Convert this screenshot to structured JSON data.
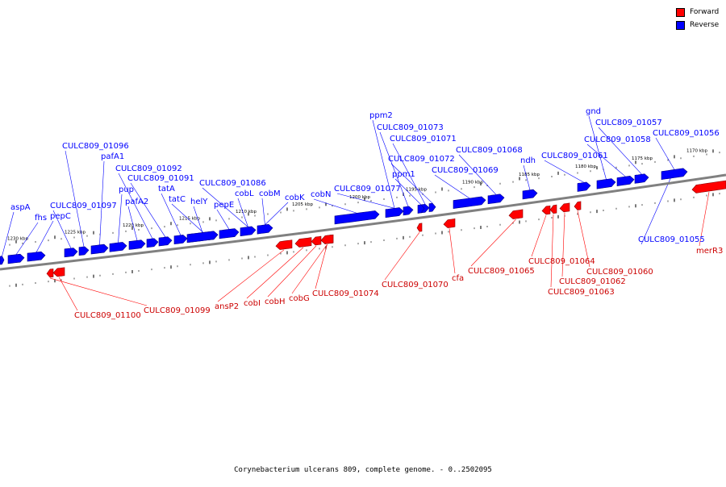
{
  "legend": {
    "forward_label": "Forward",
    "reverse_label": "Reverse",
    "forward_color": "#ff0000",
    "reverse_color": "#0000ff"
  },
  "caption": "Corynebacterium ulcerans 809, complete genome. - 0..2502095",
  "colors": {
    "forward": "#ff0000",
    "reverse": "#0000ff",
    "backbone": "#808080"
  },
  "scale_ticks": [
    "1230 kbp",
    "1225 kbp",
    "1220 kbp",
    "1215 kbp",
    "1210 kbp",
    "1205 kbp",
    "1200 kbp",
    "1195 kbp",
    "1190 kbp",
    "1185 kbp",
    "1180 kbp",
    "1175 kbp",
    "1170 kbp"
  ],
  "reverse_genes": [
    "aspA",
    "fhs",
    "pepC",
    "CULC809_01097",
    "CULC809_01096",
    "pafA1",
    "pup",
    "pafA2",
    "CULC809_01092",
    "CULC809_01091",
    "tatA",
    "tatC",
    "helY",
    "pepE",
    "CULC809_01086",
    "cobL",
    "cobM",
    "cobK",
    "cobN",
    "CULC809_01077",
    "ppm2",
    "CULC809_01073",
    "CULC809_01071",
    "ppm1",
    "CULC809_01072",
    "CULC809_01069",
    "CULC809_01068",
    "ndh",
    "CULC809_01061",
    "gnd",
    "CULC809_01058",
    "CULC809_01057",
    "CULC809_01056",
    "CULC809_01055"
  ],
  "forward_genes": [
    "CULC809_01100",
    "CULC809_01099",
    "ansP2",
    "cobI",
    "cobH",
    "cobG",
    "CULC809_01074",
    "CULC809_01070",
    "cfa",
    "CULC809_01065",
    "CULC809_01064",
    "CULC809_01062",
    "CULC809_01063",
    "CULC809_01060",
    "merR3"
  ]
}
